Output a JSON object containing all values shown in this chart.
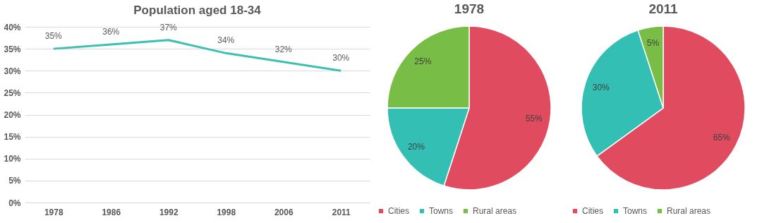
{
  "chart_data": [
    {
      "type": "line",
      "title": "Population aged 18-34",
      "categories": [
        "1978",
        "1986",
        "1992",
        "1998",
        "2006",
        "2011"
      ],
      "series": [
        {
          "color": "#3dbfb1",
          "values": [
            35,
            36,
            37,
            34,
            32,
            30
          ],
          "value_labels": [
            "35%",
            "36%",
            "37%",
            "34%",
            "32%",
            "30%"
          ]
        }
      ],
      "ylim": [
        0,
        40
      ],
      "yticks": [
        {
          "value": 0,
          "label": "0%"
        },
        {
          "value": 5,
          "label": "5%"
        },
        {
          "value": 10,
          "label": "10%"
        },
        {
          "value": 15,
          "label": "15%"
        },
        {
          "value": 20,
          "label": "20%"
        },
        {
          "value": 25,
          "label": "25%"
        },
        {
          "value": 30,
          "label": "30%"
        },
        {
          "value": 35,
          "label": "35%"
        },
        {
          "value": 40,
          "label": "40%"
        }
      ],
      "grid": "y"
    },
    {
      "type": "pie",
      "title": "1978",
      "categories": [
        "Cities",
        "Towns",
        "Rural areas"
      ],
      "values": [
        55,
        20,
        25
      ],
      "colors": [
        "#e04b5f",
        "#33bfb3",
        "#78bd45"
      ],
      "value_labels": [
        "55%",
        "20%",
        "25%"
      ],
      "legend": "bottom"
    },
    {
      "type": "pie",
      "title": "2011",
      "categories": [
        "Cities",
        "Towns",
        "Rural areas"
      ],
      "values": [
        65,
        30,
        5
      ],
      "colors": [
        "#e04b5f",
        "#33bfb3",
        "#78bd45"
      ],
      "value_labels": [
        "65%",
        "30%",
        "5%"
      ],
      "legend": "bottom"
    }
  ]
}
